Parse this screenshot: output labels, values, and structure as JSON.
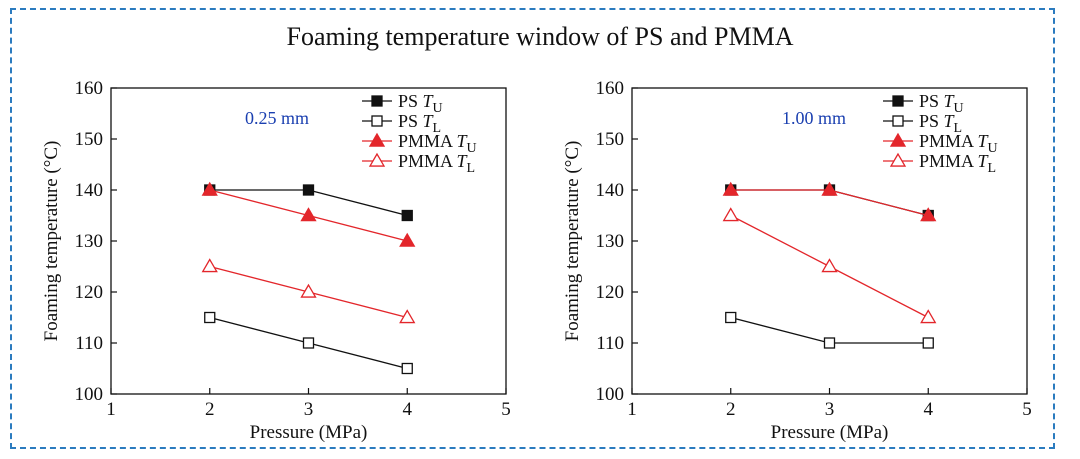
{
  "title": "Foaming temperature window of PS and PMMA",
  "colors": {
    "black": "#111111",
    "red": "#e3262b",
    "frame": "#2b7bbf",
    "annot": "#1a3fb0"
  },
  "chart_data": [
    {
      "type": "line",
      "annotation": "0.25 mm",
      "xlabel": "Pressure (MPa)",
      "ylabel": "Foaming temperature (°C)",
      "xlim": [
        1,
        5
      ],
      "ylim": [
        100,
        160
      ],
      "xticks": [
        "1",
        "2",
        "3",
        "4",
        "5"
      ],
      "yticks": [
        "100",
        "110",
        "120",
        "130",
        "140",
        "150",
        "160"
      ],
      "x": [
        2,
        3,
        4
      ],
      "series": [
        {
          "name": "PS ",
          "sub": "U",
          "label": "PS TU",
          "values": [
            140,
            140,
            135
          ],
          "color": "#111111",
          "marker": "square",
          "filled": true
        },
        {
          "name": "PS ",
          "sub": "L",
          "label": "PS TL",
          "values": [
            115,
            110,
            105
          ],
          "color": "#111111",
          "marker": "square",
          "filled": false
        },
        {
          "name": "PMMA ",
          "sub": "U",
          "label": "PMMA TU",
          "values": [
            140,
            135,
            130
          ],
          "color": "#e3262b",
          "marker": "triangle",
          "filled": true
        },
        {
          "name": "PMMA ",
          "sub": "L",
          "label": "PMMA TL",
          "values": [
            125,
            120,
            115
          ],
          "color": "#e3262b",
          "marker": "triangle",
          "filled": false
        }
      ]
    },
    {
      "type": "line",
      "annotation": "1.00 mm",
      "xlabel": "Pressure (MPa)",
      "ylabel": "Foaming temperature (°C)",
      "xlim": [
        1,
        5
      ],
      "ylim": [
        100,
        160
      ],
      "xticks": [
        "1",
        "2",
        "3",
        "4",
        "5"
      ],
      "yticks": [
        "100",
        "110",
        "120",
        "130",
        "140",
        "150",
        "160"
      ],
      "x": [
        2,
        3,
        4
      ],
      "series": [
        {
          "name": "PS ",
          "sub": "U",
          "label": "PS TU",
          "values": [
            140,
            140,
            135
          ],
          "color": "#111111",
          "marker": "square",
          "filled": true
        },
        {
          "name": "PS ",
          "sub": "L",
          "label": "PS TL",
          "values": [
            115,
            110,
            110
          ],
          "color": "#111111",
          "marker": "square",
          "filled": false
        },
        {
          "name": "PMMA ",
          "sub": "U",
          "label": "PMMA TU",
          "values": [
            140,
            140,
            135
          ],
          "color": "#e3262b",
          "marker": "triangle",
          "filled": true
        },
        {
          "name": "PMMA ",
          "sub": "L",
          "label": "PMMA TL",
          "values": [
            135,
            125,
            115
          ],
          "color": "#e3262b",
          "marker": "triangle",
          "filled": false
        }
      ]
    }
  ]
}
